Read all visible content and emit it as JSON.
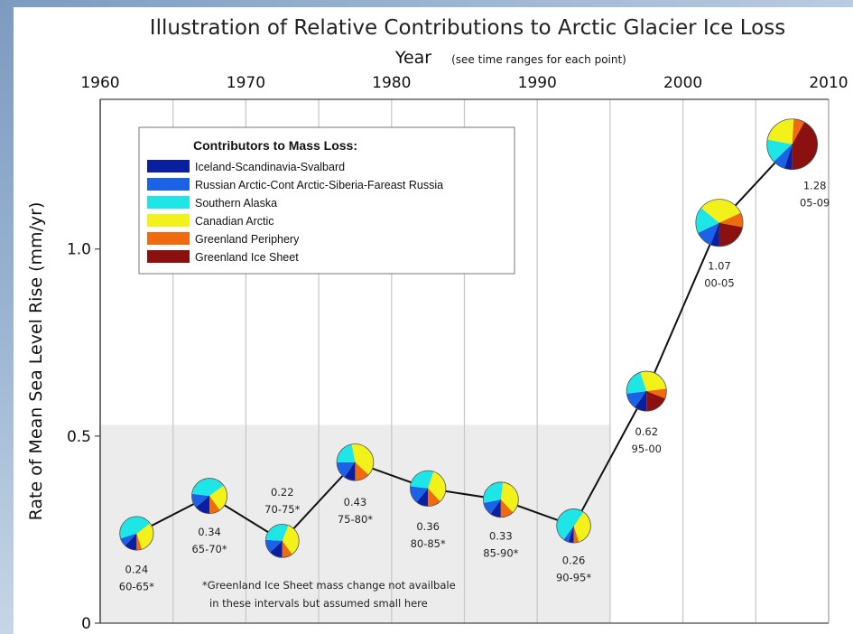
{
  "chart_data": {
    "type": "pie",
    "title": "Illustration of Relative Contributions to Arctic Glacier Ice Loss",
    "xlabel": "Year",
    "xlabel_note": "(see time ranges for each point)",
    "ylabel": "Rate of Mean Sea Level Rise (mm/yr)",
    "xlim": [
      1960,
      2010
    ],
    "ylim": [
      0,
      1.4
    ],
    "x_ticks": [
      "1960",
      "1970",
      "1980",
      "1990",
      "2000",
      "2010"
    ],
    "x_tick_values": [
      1960,
      1970,
      1980,
      1990,
      2000,
      2010
    ],
    "y_ticks": [
      "0",
      "0.5",
      "1.0"
    ],
    "y_tick_values": [
      0,
      0.5,
      1.0
    ],
    "x_grid_step": 5,
    "shaded_band": {
      "y_max": 0.53,
      "x_max": 1995
    },
    "legend": {
      "title": "Contributors to Mass Loss:",
      "placement": "top-left",
      "entries": [
        {
          "label": "Iceland-Scandinavia-Svalbard",
          "color": "#0a1fa0"
        },
        {
          "label": "Russian Arctic-Cont Arctic-Siberia-Fareast Russia",
          "color": "#1b63e6"
        },
        {
          "label": "Southern Alaska",
          "color": "#1fe6e6"
        },
        {
          "label": "Canadian Arctic",
          "color": "#f2f21a"
        },
        {
          "label": "Greenland Periphery",
          "color": "#f06a10"
        },
        {
          "label": "Greenland Ice Sheet",
          "color": "#8b1010"
        }
      ]
    },
    "points": [
      {
        "x": 1962.5,
        "y": 0.24,
        "value": "0.24",
        "period": "60-65*",
        "fractions": [
          0.12,
          0.08,
          0.45,
          0.3,
          0.05,
          0.0
        ]
      },
      {
        "x": 1967.5,
        "y": 0.34,
        "value": "0.34",
        "period": "65-70*",
        "fractions": [
          0.14,
          0.13,
          0.38,
          0.25,
          0.1,
          0.0
        ]
      },
      {
        "x": 1972.5,
        "y": 0.22,
        "value": "0.22",
        "period": "70-75*",
        "fractions": [
          0.13,
          0.13,
          0.3,
          0.34,
          0.1,
          0.0
        ]
      },
      {
        "x": 1977.5,
        "y": 0.43,
        "value": "0.43",
        "period": "75-80*",
        "fractions": [
          0.1,
          0.15,
          0.22,
          0.4,
          0.13,
          0.0
        ]
      },
      {
        "x": 1982.5,
        "y": 0.36,
        "value": "0.36",
        "period": "80-85*",
        "fractions": [
          0.11,
          0.16,
          0.28,
          0.33,
          0.12,
          0.0
        ]
      },
      {
        "x": 1987.5,
        "y": 0.33,
        "value": "0.33",
        "period": "85-90*",
        "fractions": [
          0.1,
          0.12,
          0.3,
          0.36,
          0.12,
          0.0
        ]
      },
      {
        "x": 1992.5,
        "y": 0.26,
        "value": "0.26",
        "period": "90-95*",
        "fractions": [
          0.05,
          0.05,
          0.5,
          0.35,
          0.05,
          0.0
        ]
      },
      {
        "x": 1997.5,
        "y": 0.62,
        "value": "0.62",
        "period": "95-00",
        "fractions": [
          0.1,
          0.13,
          0.22,
          0.28,
          0.08,
          0.19
        ]
      },
      {
        "x": 2002.5,
        "y": 1.07,
        "value": "1.07",
        "period": "00-05",
        "fractions": [
          0.06,
          0.12,
          0.18,
          0.32,
          0.1,
          0.22
        ]
      },
      {
        "x": 2007.5,
        "y": 1.28,
        "value": "1.28",
        "period": "05-09",
        "fractions": [
          0.05,
          0.08,
          0.15,
          0.23,
          0.07,
          0.42
        ]
      }
    ],
    "annotation": [
      "*Greenland Ice Sheet mass change not availbale",
      "in these intervals but assumed small here"
    ]
  }
}
